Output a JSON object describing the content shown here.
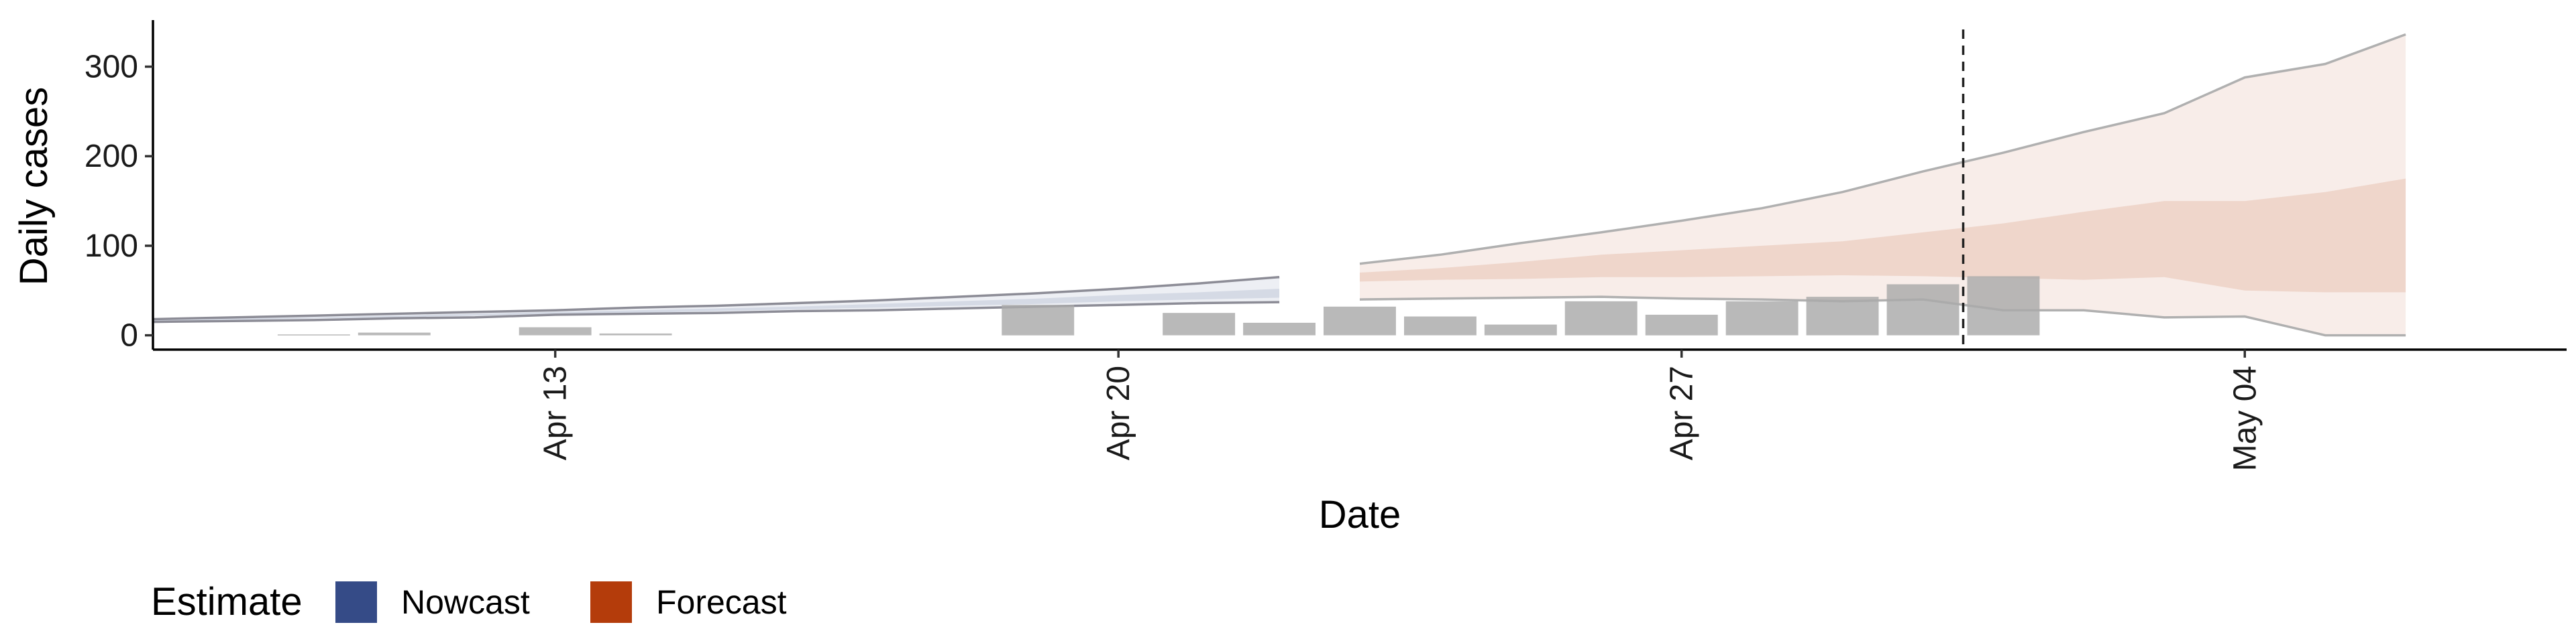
{
  "chart_data": {
    "type": "area",
    "title": "",
    "xlabel": "Date",
    "ylabel": "Daily cases",
    "ylim": [
      -16,
      352
    ],
    "yticks": [
      0,
      100,
      200,
      300
    ],
    "x_tick_labels": [
      {
        "date": "2020-04-13",
        "label": "Apr 13"
      },
      {
        "date": "2020-04-20",
        "label": "Apr 20"
      },
      {
        "date": "2020-04-27",
        "label": "Apr 27"
      },
      {
        "date": "2020-05-04",
        "label": "May 04"
      }
    ],
    "xlim": [
      "2020-04-08",
      "2020-05-08"
    ],
    "estimate_date": "2020-05-01",
    "grid": false,
    "legend": {
      "title": "Estimate",
      "position": "bottom-left",
      "items": [
        {
          "label": "Nowcast",
          "color": "#354b87"
        },
        {
          "label": "Forecast",
          "color": "#b43c0b"
        }
      ]
    },
    "colors": {
      "nowcast": "#354b87",
      "forecast": "#b43c0b",
      "bars": "#a9a9a9",
      "band_line": "#b0b0b0",
      "vline": "#222222"
    },
    "observed_cases": [
      {
        "date": "2020-04-10",
        "value": 1
      },
      {
        "date": "2020-04-11",
        "value": 3
      },
      {
        "date": "2020-04-13",
        "value": 9
      },
      {
        "date": "2020-04-14",
        "value": 2
      },
      {
        "date": "2020-04-19",
        "value": 34
      },
      {
        "date": "2020-04-21",
        "value": 25
      },
      {
        "date": "2020-04-22",
        "value": 14
      },
      {
        "date": "2020-04-23",
        "value": 32
      },
      {
        "date": "2020-04-24",
        "value": 21
      },
      {
        "date": "2020-04-25",
        "value": 12
      },
      {
        "date": "2020-04-26",
        "value": 38
      },
      {
        "date": "2020-04-27",
        "value": 23
      },
      {
        "date": "2020-04-28",
        "value": 38
      },
      {
        "date": "2020-04-29",
        "value": 43
      },
      {
        "date": "2020-04-30",
        "value": 57
      },
      {
        "date": "2020-05-01",
        "value": 66
      }
    ],
    "series": [
      {
        "estimate": "nowcast",
        "dates": [
          "2020-04-08",
          "2020-04-09",
          "2020-04-10",
          "2020-04-11",
          "2020-04-12",
          "2020-04-13",
          "2020-04-14",
          "2020-04-15",
          "2020-04-16",
          "2020-04-17",
          "2020-04-18",
          "2020-04-19",
          "2020-04-20",
          "2020-04-21",
          "2020-04-22"
        ],
        "lower_90": [
          15,
          16,
          17,
          19,
          20,
          23,
          24,
          25,
          27,
          28,
          30,
          32,
          34,
          36,
          37
        ],
        "lower_50": [
          16,
          17,
          19,
          20,
          22,
          24,
          25,
          27,
          29,
          31,
          33,
          35,
          38,
          40,
          42
        ],
        "upper_50": [
          17,
          19,
          20,
          22,
          24,
          26,
          28,
          30,
          32,
          35,
          38,
          41,
          45,
          48,
          52
        ],
        "upper_90": [
          18,
          20,
          22,
          24,
          26,
          28,
          31,
          33,
          36,
          39,
          43,
          47,
          52,
          58,
          65
        ]
      },
      {
        "estimate": "forecast",
        "dates": [
          "2020-04-23",
          "2020-04-24",
          "2020-04-25",
          "2020-04-26",
          "2020-04-27",
          "2020-04-28",
          "2020-04-29",
          "2020-04-30",
          "2020-05-01",
          "2020-05-02",
          "2020-05-03",
          "2020-05-04",
          "2020-05-05",
          "2020-05-06"
        ],
        "lower_90": [
          40,
          41,
          42,
          43,
          41,
          40,
          38,
          40,
          28,
          28,
          20,
          21,
          0,
          0
        ],
        "lower_50": [
          60,
          62,
          63,
          65,
          65,
          66,
          67,
          66,
          64,
          62,
          65,
          50,
          48,
          48
        ],
        "upper_50": [
          70,
          75,
          82,
          90,
          95,
          100,
          105,
          115,
          125,
          138,
          150,
          150,
          160,
          175
        ],
        "upper_90": [
          80,
          90,
          103,
          115,
          128,
          142,
          160,
          183,
          204,
          227,
          248,
          288,
          303,
          336
        ]
      }
    ]
  }
}
